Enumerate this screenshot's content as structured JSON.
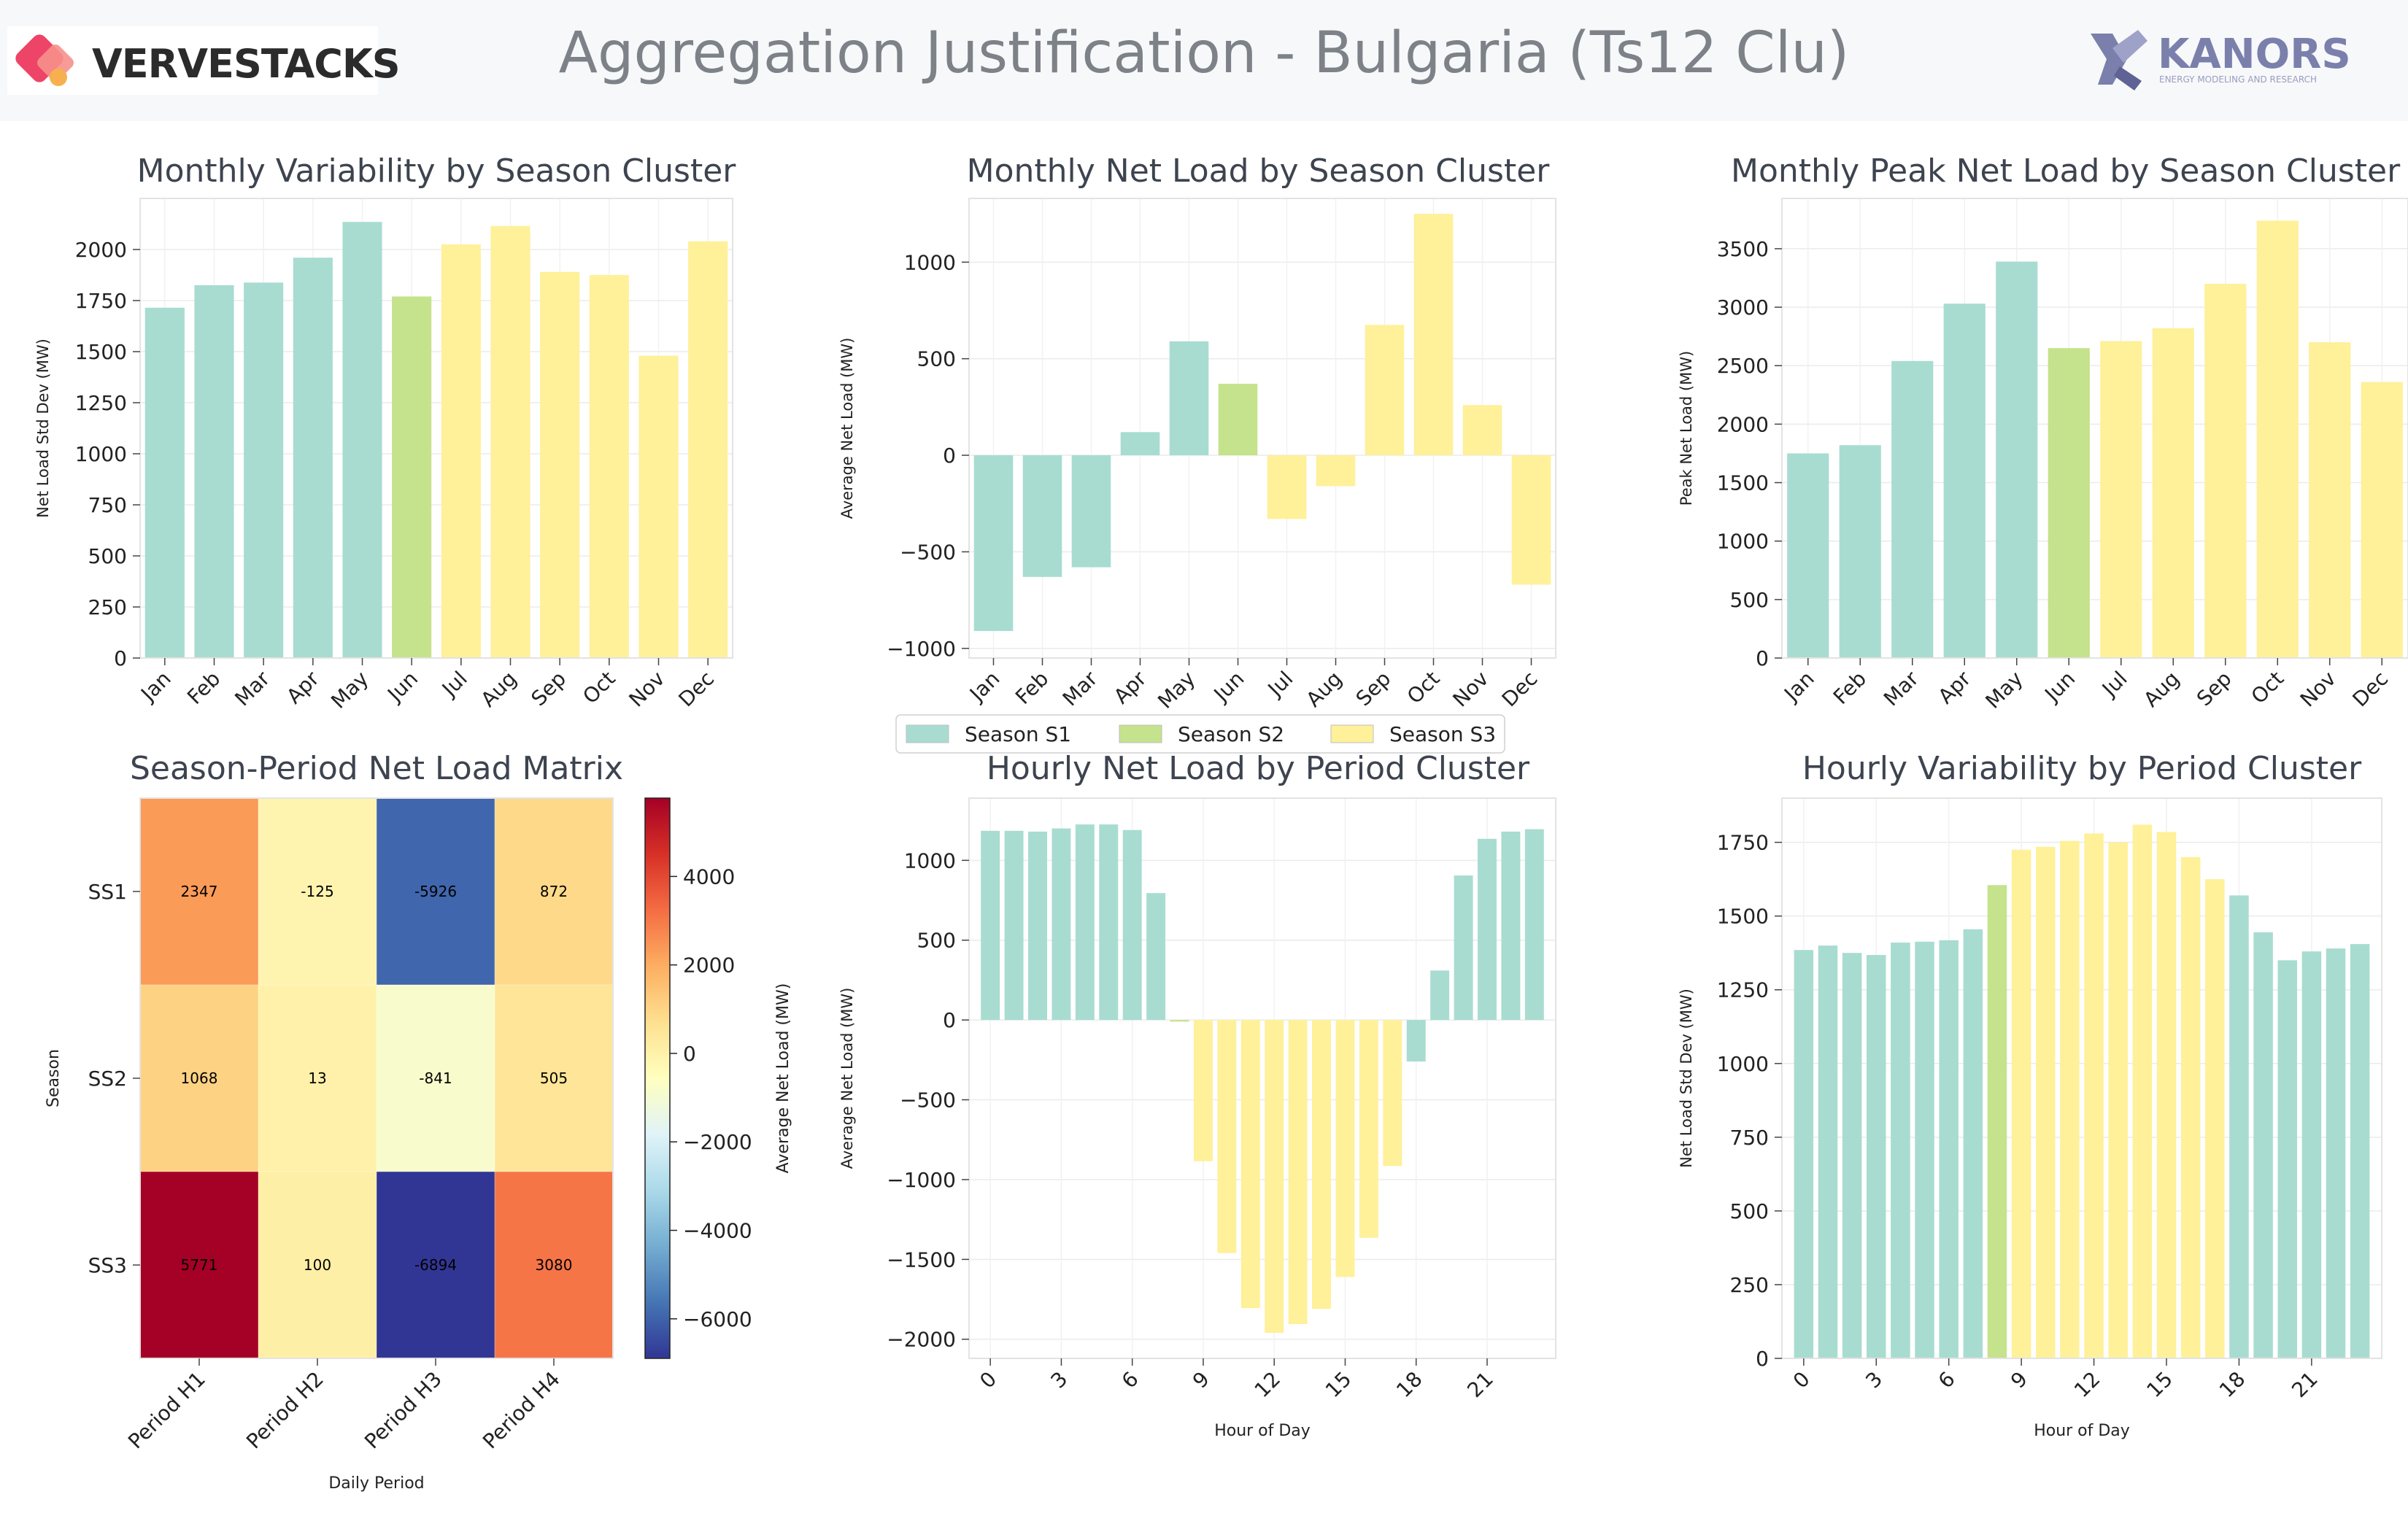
{
  "header": {
    "title": "Aggregation Justification - Bulgaria (Ts12 Clu)",
    "logo_left": "VERVESTACKS",
    "logo_right": "KANORS",
    "logo_right_tagline": "ENERGY MODELING AND RESEARCH"
  },
  "colors": {
    "S1": "#a8dcd1",
    "S2": "#c5e28c",
    "S3": "#fff09a",
    "logo_left_accent": "#ee4467",
    "logo_right_accent": "#7b7fab"
  },
  "legend": {
    "entries": [
      "Season S1",
      "Season S2",
      "Season S3"
    ],
    "placement": "center"
  },
  "chart_data": [
    {
      "id": "monthly_variability",
      "type": "bar",
      "title": "Monthly Variability by Season Cluster",
      "xlabel": "",
      "ylabel": "Net Load Std Dev (MW)",
      "categories": [
        "Jan",
        "Feb",
        "Mar",
        "Apr",
        "May",
        "Jun",
        "Jul",
        "Aug",
        "Sep",
        "Oct",
        "Nov",
        "Dec"
      ],
      "values": [
        1715,
        1825,
        1838,
        1960,
        2135,
        1770,
        2025,
        2115,
        1890,
        1875,
        1480,
        2040
      ],
      "clusters": [
        "S1",
        "S1",
        "S1",
        "S1",
        "S1",
        "S2",
        "S3",
        "S3",
        "S3",
        "S3",
        "S3",
        "S3"
      ],
      "ylim": [
        0,
        2250
      ],
      "yticks": [
        0,
        250,
        500,
        750,
        1000,
        1250,
        1500,
        1750,
        2000
      ],
      "grid": true
    },
    {
      "id": "monthly_net_load",
      "type": "bar",
      "title": "Monthly Net Load by Season Cluster",
      "xlabel": "",
      "ylabel": "Average Net Load (MW)",
      "categories": [
        "Jan",
        "Feb",
        "Mar",
        "Apr",
        "May",
        "Jun",
        "Jul",
        "Aug",
        "Sep",
        "Oct",
        "Nov",
        "Dec"
      ],
      "values": [
        -910,
        -630,
        -580,
        120,
        590,
        370,
        -330,
        -160,
        675,
        1250,
        260,
        -670
      ],
      "clusters": [
        "S1",
        "S1",
        "S1",
        "S1",
        "S1",
        "S2",
        "S3",
        "S3",
        "S3",
        "S3",
        "S3",
        "S3"
      ],
      "ylim": [
        -1050,
        1330
      ],
      "yticks": [
        -1000,
        -500,
        0,
        500,
        1000
      ],
      "yticklabels": [
        "−1000",
        "−500",
        "0",
        "500",
        "1000"
      ],
      "grid": true
    },
    {
      "id": "monthly_peak",
      "type": "bar",
      "title": "Monthly Peak Net Load by Season Cluster",
      "xlabel": "",
      "ylabel": "Peak Net Load (MW)",
      "categories": [
        "Jan",
        "Feb",
        "Mar",
        "Apr",
        "May",
        "Jun",
        "Jul",
        "Aug",
        "Sep",
        "Oct",
        "Nov",
        "Dec"
      ],
      "values": [
        1750,
        1820,
        2540,
        3030,
        3390,
        2650,
        2710,
        2820,
        3200,
        3740,
        2700,
        2360
      ],
      "clusters": [
        "S1",
        "S1",
        "S1",
        "S1",
        "S1",
        "S2",
        "S3",
        "S3",
        "S3",
        "S3",
        "S3",
        "S3"
      ],
      "ylim": [
        0,
        3930
      ],
      "yticks": [
        0,
        500,
        1000,
        1500,
        2000,
        2500,
        3000,
        3500
      ],
      "grid": true
    },
    {
      "id": "season_period_matrix",
      "type": "heatmap",
      "title": "Season-Period Net Load Matrix",
      "xlabel": "Daily Period",
      "ylabel": "Season",
      "columns": [
        "Period H1",
        "Period H2",
        "Period H3",
        "Period H4"
      ],
      "rows": [
        "SS1",
        "SS2",
        "SS3"
      ],
      "values": [
        [
          2347,
          -125,
          -5926,
          872
        ],
        [
          1068,
          13,
          -841,
          505
        ],
        [
          5771,
          100,
          -6894,
          3080
        ]
      ],
      "value_labels": [
        [
          "2347",
          "-125",
          "-5926",
          "872"
        ],
        [
          "1068",
          "13",
          "-841",
          "505"
        ],
        [
          "5771",
          "100",
          "-6894",
          "3080"
        ]
      ],
      "colorbar_label": "Average Net Load (MW)",
      "colorbar_range": [
        -6894,
        5771
      ],
      "colorbar_ticks": [
        4000,
        2000,
        0,
        -2000,
        -4000,
        -6000
      ],
      "colorbar_ticklabels": [
        "4000",
        "2000",
        "0",
        "−2000",
        "−4000",
        "−6000"
      ],
      "colormap": "RdYlBu_r"
    },
    {
      "id": "hourly_net_load",
      "type": "bar",
      "title": "Hourly Net Load by Period Cluster",
      "xlabel": "Hour of Day",
      "ylabel": "Average Net Load (MW)",
      "x": [
        0,
        1,
        2,
        3,
        4,
        5,
        6,
        7,
        8,
        9,
        10,
        11,
        12,
        13,
        14,
        15,
        16,
        17,
        18,
        19,
        20,
        21,
        22,
        23
      ],
      "values": [
        1185,
        1185,
        1180,
        1200,
        1225,
        1225,
        1190,
        795,
        -10,
        -885,
        -1460,
        -1805,
        -1960,
        -1905,
        -1810,
        -1610,
        -1365,
        -915,
        -260,
        310,
        905,
        1135,
        1180,
        1195
      ],
      "clusters": [
        "S1",
        "S1",
        "S1",
        "S1",
        "S1",
        "S1",
        "S1",
        "S1",
        "S2",
        "S3",
        "S3",
        "S3",
        "S3",
        "S3",
        "S3",
        "S3",
        "S3",
        "S3",
        "S1",
        "S1",
        "S1",
        "S1",
        "S1",
        "S1"
      ],
      "ylim": [
        -2120,
        1390
      ],
      "yticks": [
        -2000,
        -1500,
        -1000,
        -500,
        0,
        500,
        1000
      ],
      "yticklabels": [
        "−2000",
        "−1500",
        "−1000",
        "−500",
        "0",
        "500",
        "1000"
      ],
      "xticks": [
        0,
        3,
        6,
        9,
        12,
        15,
        18,
        21
      ],
      "grid": true
    },
    {
      "id": "hourly_variability",
      "type": "bar",
      "title": "Hourly Variability by Period Cluster",
      "xlabel": "Hour of Day",
      "ylabel": "Net Load Std Dev (MW)",
      "x": [
        0,
        1,
        2,
        3,
        4,
        5,
        6,
        7,
        8,
        9,
        10,
        11,
        12,
        13,
        14,
        15,
        16,
        17,
        18,
        19,
        20,
        21,
        22,
        23
      ],
      "values": [
        1385,
        1400,
        1375,
        1368,
        1410,
        1413,
        1418,
        1455,
        1605,
        1725,
        1735,
        1755,
        1780,
        1750,
        1810,
        1785,
        1700,
        1625,
        1570,
        1445,
        1350,
        1380,
        1390,
        1405
      ],
      "clusters": [
        "S1",
        "S1",
        "S1",
        "S1",
        "S1",
        "S1",
        "S1",
        "S1",
        "S2",
        "S3",
        "S3",
        "S3",
        "S3",
        "S3",
        "S3",
        "S3",
        "S3",
        "S3",
        "S1",
        "S1",
        "S1",
        "S1",
        "S1",
        "S1"
      ],
      "ylim": [
        0,
        1900
      ],
      "yticks": [
        0,
        250,
        500,
        750,
        1000,
        1250,
        1500,
        1750
      ],
      "xticks": [
        0,
        3,
        6,
        9,
        12,
        15,
        18,
        21
      ],
      "grid": true
    }
  ]
}
